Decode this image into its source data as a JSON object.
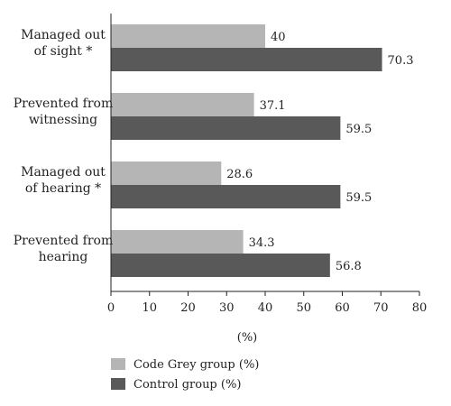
{
  "chart_data": {
    "type": "bar",
    "orientation": "horizontal",
    "categories": [
      [
        "Managed out",
        "of sight *"
      ],
      [
        "Prevented from",
        "witnessing"
      ],
      [
        "Managed out",
        "of hearing *"
      ],
      [
        "Prevented from",
        "hearing"
      ]
    ],
    "series": [
      {
        "name": "Code Grey group (%)",
        "color": "#b5b5b5",
        "values": [
          40,
          37.1,
          28.6,
          34.3
        ]
      },
      {
        "name": "Control group (%)",
        "color": "#595959",
        "values": [
          70.3,
          59.5,
          59.5,
          56.8
        ]
      }
    ],
    "value_labels": [
      [
        "40",
        "37.1",
        "28.6",
        "34.3"
      ],
      [
        "70.3",
        "59.5",
        "59.5",
        "56.8"
      ]
    ],
    "x_ticks": [
      0,
      10,
      20,
      30,
      40,
      50,
      60,
      70,
      80
    ],
    "xlim": [
      0,
      80
    ],
    "xlabel": "(%)",
    "legend_position": "bottom-left",
    "grid": false
  }
}
